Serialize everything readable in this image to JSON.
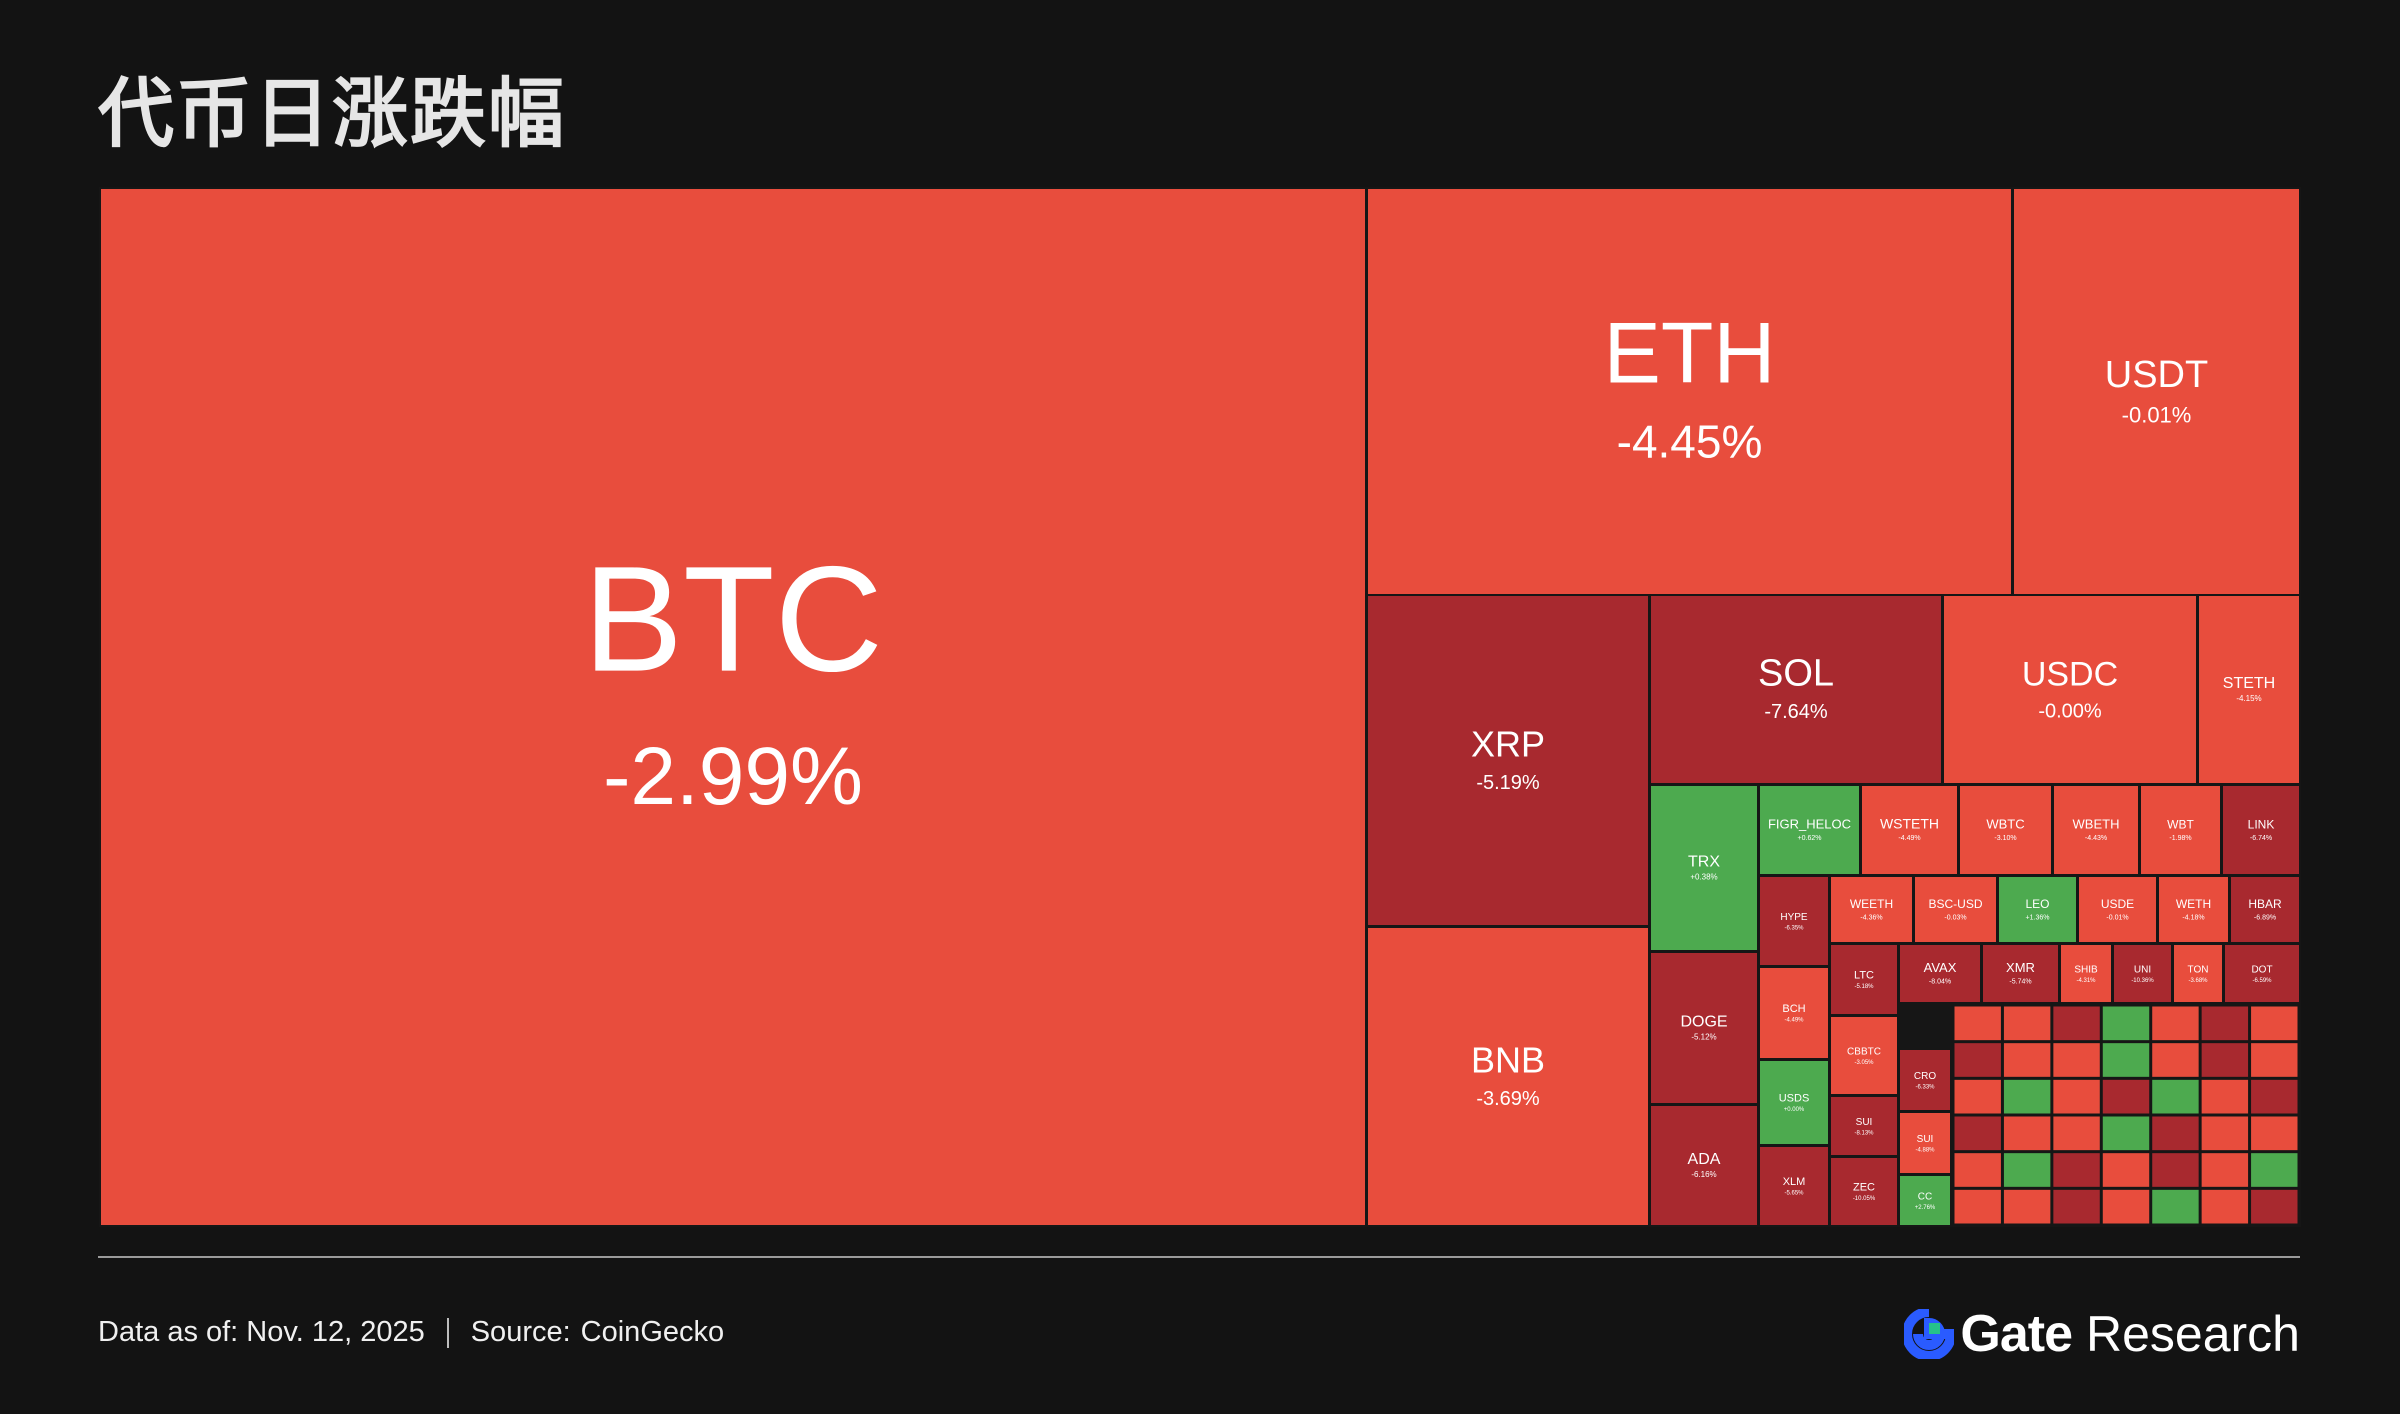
{
  "title": "代币日涨跌幅",
  "footer": {
    "date_text": "Data as of: Nov. 12, 2025",
    "source_label": "Source:",
    "source_value": "CoinGecko"
  },
  "brand": {
    "name": "Gate",
    "suffix": "Research",
    "icon": "gate-logo-icon",
    "accent": "#2a5bff",
    "accent2": "#26c18a"
  },
  "colors": {
    "down": "#e84d3d",
    "down_strong": "#a8292f",
    "up": "#4daa4f",
    "up_strong": "#2f7a3a",
    "background": "#131313"
  },
  "chart_data": {
    "type": "treemap",
    "title": "代币日涨跌幅",
    "tiles": [
      {
        "label": "BTC",
        "change": "-2.99%"
      },
      {
        "label": "ETH",
        "change": "-4.45%"
      },
      {
        "label": "USDT",
        "change": "-0.01%"
      },
      {
        "label": "XRP",
        "change": "-5.19%"
      },
      {
        "label": "SOL",
        "change": "-7.64%"
      },
      {
        "label": "USDC",
        "change": "-0.00%"
      },
      {
        "label": "STETH",
        "change": "-4.15%"
      },
      {
        "label": "BNB",
        "change": "-3.69%"
      },
      {
        "label": "TRX",
        "change": "+0.38%"
      },
      {
        "label": "FIGR_HELOC",
        "change": "+0.62%"
      },
      {
        "label": "WSTETH",
        "change": "-4.49%"
      },
      {
        "label": "WBTC",
        "change": "-3.10%"
      },
      {
        "label": "WBETH",
        "change": "-4.43%"
      },
      {
        "label": "WBT",
        "change": "-1.98%"
      },
      {
        "label": "LINK",
        "change": "-6.74%"
      },
      {
        "label": "HYPE",
        "change": "-6.35%"
      },
      {
        "label": "WEETH",
        "change": "-4.36%"
      },
      {
        "label": "BSC-USD",
        "change": "-0.03%"
      },
      {
        "label": "LEO",
        "change": "+1.36%"
      },
      {
        "label": "USDE",
        "change": "-0.01%"
      },
      {
        "label": "WETH",
        "change": "-4.18%"
      },
      {
        "label": "HBAR",
        "change": "-6.89%"
      },
      {
        "label": "DOGE",
        "change": "-5.12%"
      },
      {
        "label": "BCH",
        "change": "-4.49%"
      },
      {
        "label": "LTC",
        "change": "-5.18%"
      },
      {
        "label": "AVAX",
        "change": "-8.04%"
      },
      {
        "label": "XMR",
        "change": "-5.74%"
      },
      {
        "label": "SHIB",
        "change": "-4.31%"
      },
      {
        "label": "UNI",
        "change": "-10.36%"
      },
      {
        "label": "TON",
        "change": "-3.68%"
      },
      {
        "label": "DOT",
        "change": "-6.59%"
      },
      {
        "label": "CBBTC",
        "change": "-3.05%"
      },
      {
        "label": "USDS",
        "change": "+0.00%"
      },
      {
        "label": "CRO",
        "change": "-6.33%"
      },
      {
        "label": "SUI",
        "change": "-8.13%"
      },
      {
        "label": "SUI",
        "change": "-4.88%"
      },
      {
        "label": "ADA",
        "change": "-6.16%"
      },
      {
        "label": "XLM",
        "change": "-5.65%"
      },
      {
        "label": "ZEC",
        "change": "-10.05%"
      },
      {
        "label": "CC",
        "change": "+2.76%"
      }
    ]
  }
}
